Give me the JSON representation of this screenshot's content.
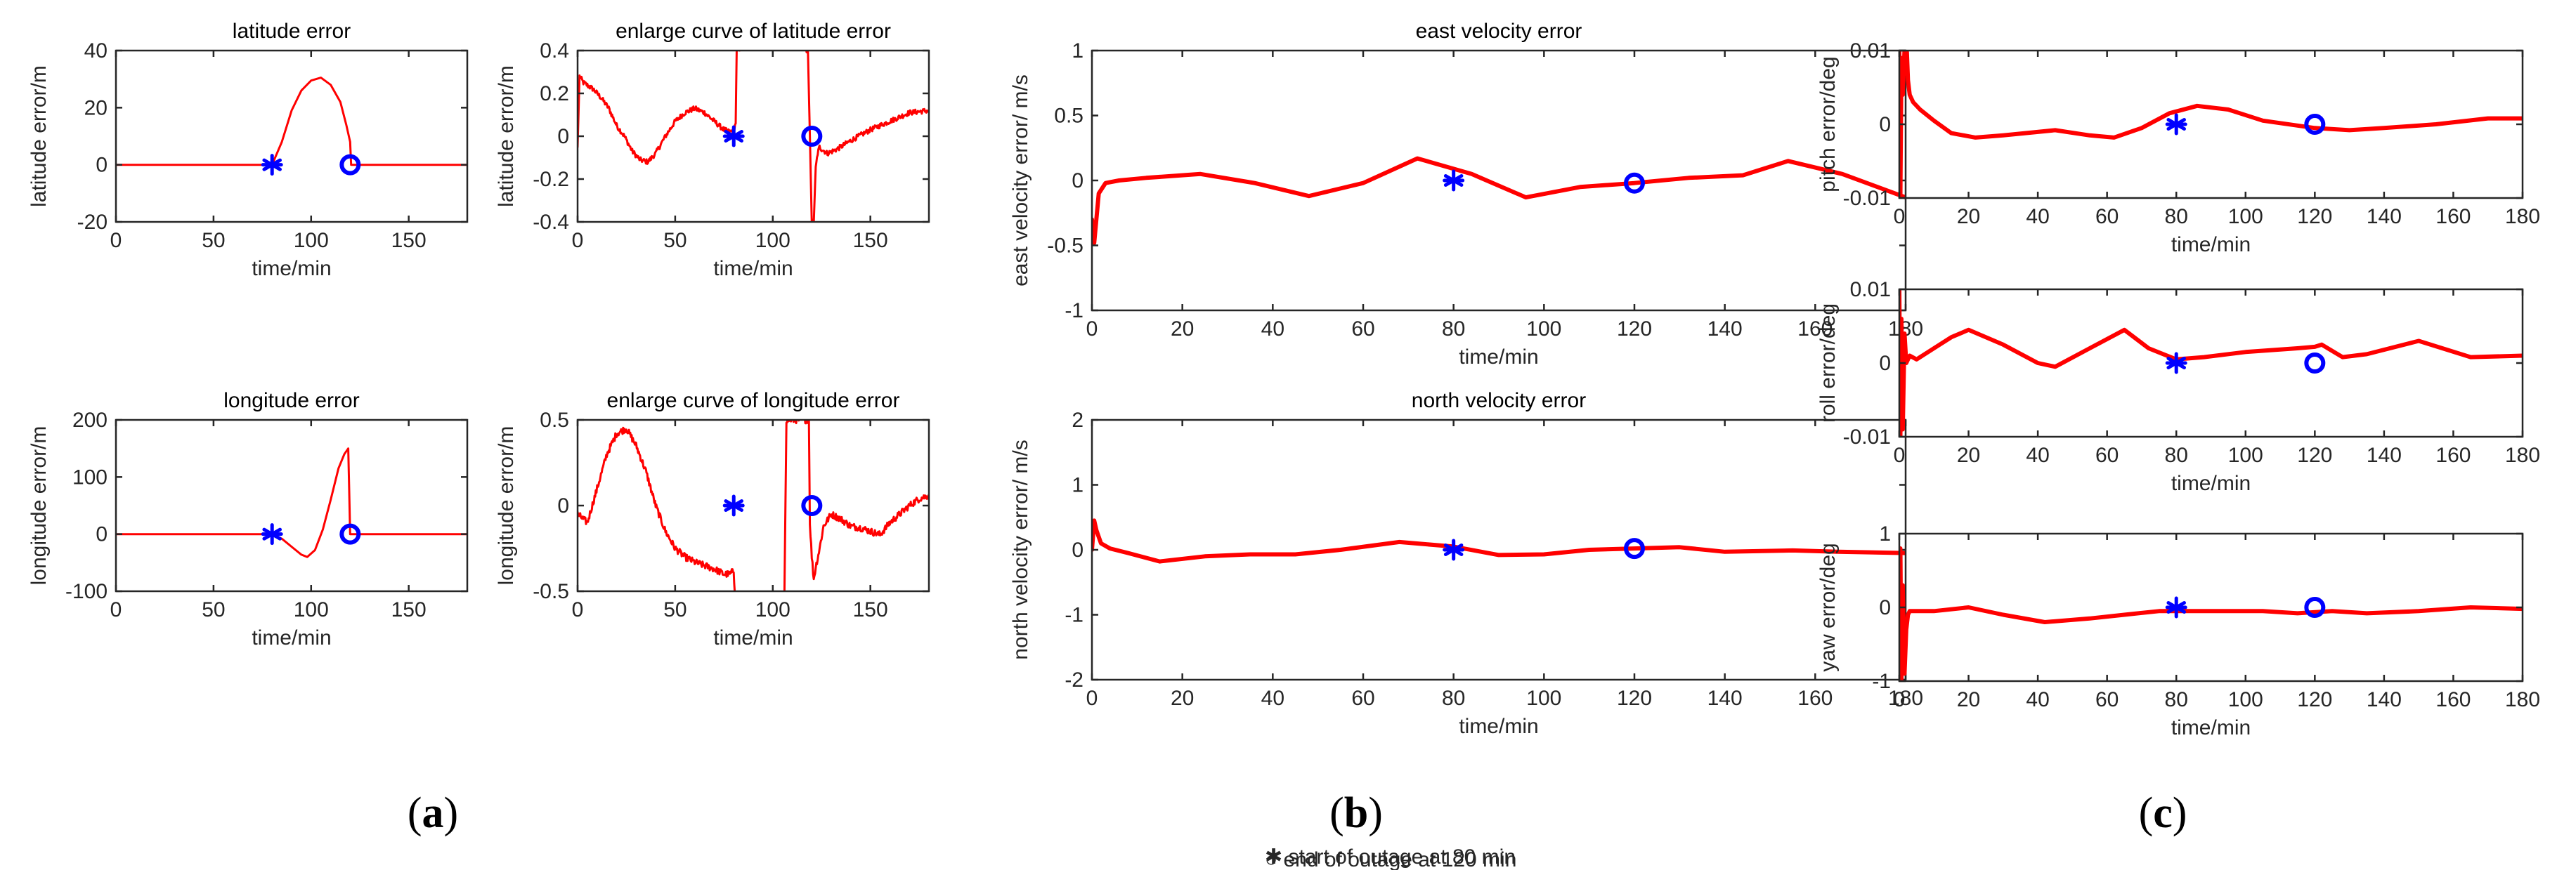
{
  "colors": {
    "series": "#ff0000",
    "marker": "#0000ff",
    "axis": "#262626"
  },
  "legend_markers": {
    "asterisk": "✱ start of outage at 80 min",
    "circle": "○ end of outage at 120 min"
  },
  "captions": [
    {
      "open": "(",
      "letter": "a",
      "close": ")"
    },
    {
      "open": "(",
      "letter": "b",
      "close": ")"
    },
    {
      "open": "(",
      "letter": "c",
      "close": ")"
    }
  ],
  "chart_data": [
    {
      "id": "lat",
      "type": "line",
      "title": "latitude error",
      "xlabel": "time/min",
      "ylabel": "latitude error/m",
      "xlim": [
        0,
        180
      ],
      "ylim": [
        -20,
        40
      ],
      "xticks": [
        0,
        50,
        100,
        150
      ],
      "yticks": [
        -20,
        0,
        20,
        40
      ],
      "series": [
        {
          "name": "latitude error",
          "x": [
            0,
            20,
            40,
            60,
            80,
            85,
            90,
            95,
            100,
            105,
            110,
            115,
            118,
            120,
            120.5,
            130,
            150,
            180
          ],
          "y": [
            0,
            0,
            0,
            0,
            0,
            8,
            19,
            26,
            29.5,
            30.5,
            28,
            22,
            14,
            8,
            0,
            0,
            0,
            0
          ]
        }
      ],
      "markers": [
        {
          "shape": "asterisk",
          "x": 80,
          "y": 0
        },
        {
          "shape": "circle",
          "x": 120,
          "y": 0
        }
      ]
    },
    {
      "id": "lat_zoom",
      "type": "line",
      "title": "enlarge curve of latitude error",
      "xlabel": "time/min",
      "ylabel": "latitude error/m",
      "xlim": [
        0,
        180
      ],
      "ylim": [
        -0.4,
        0.4
      ],
      "xticks": [
        0,
        50,
        100,
        150
      ],
      "yticks": [
        -0.4,
        -0.2,
        0,
        0.2,
        0.4
      ],
      "series": [
        {
          "name": "latitude error (zoom)",
          "noise": 0.015,
          "x": [
            0,
            1,
            3,
            8,
            12,
            16,
            20,
            24,
            28,
            32,
            36,
            40,
            45,
            50,
            55,
            60,
            65,
            70,
            75,
            78,
            80,
            81,
            81.5,
            83,
            85,
            90,
            100,
            110,
            116,
            117,
            118,
            119,
            120,
            121,
            122,
            123,
            124,
            125,
            128,
            133,
            140,
            150,
            160,
            170,
            180
          ],
          "y": [
            -0.05,
            0.28,
            0.25,
            0.22,
            0.18,
            0.13,
            0.05,
            0.0,
            -0.07,
            -0.11,
            -0.12,
            -0.08,
            0.0,
            0.07,
            0.11,
            0.13,
            0.11,
            0.07,
            0.03,
            0.02,
            0.03,
            0.06,
            0.4,
            0.4,
            null,
            null,
            null,
            null,
            null,
            0.4,
            0.4,
            0.0,
            -0.4,
            -0.4,
            -0.15,
            -0.08,
            -0.05,
            -0.06,
            -0.08,
            -0.06,
            -0.02,
            0.03,
            0.07,
            0.11,
            0.12
          ]
        }
      ],
      "markers": [
        {
          "shape": "asterisk",
          "x": 80,
          "y": 0
        },
        {
          "shape": "circle",
          "x": 120,
          "y": 0
        }
      ]
    },
    {
      "id": "lon",
      "type": "line",
      "title": "longitude error",
      "xlabel": "time/min",
      "ylabel": "longitude error/m",
      "xlim": [
        0,
        180
      ],
      "ylim": [
        -100,
        200
      ],
      "xticks": [
        0,
        50,
        100,
        150
      ],
      "yticks": [
        -100,
        0,
        100,
        200
      ],
      "series": [
        {
          "name": "longitude error",
          "x": [
            0,
            20,
            40,
            60,
            80,
            85,
            90,
            95,
            98,
            102,
            106,
            110,
            114,
            117,
            119,
            119.5,
            120,
            130,
            150,
            180
          ],
          "y": [
            0,
            0,
            0,
            0,
            0,
            -8,
            -22,
            -36,
            -40,
            -28,
            8,
            60,
            115,
            140,
            150,
            80,
            0,
            0,
            0,
            0
          ]
        }
      ],
      "markers": [
        {
          "shape": "asterisk",
          "x": 80,
          "y": 0
        },
        {
          "shape": "circle",
          "x": 120,
          "y": 0
        }
      ]
    },
    {
      "id": "lon_zoom",
      "type": "line",
      "title": "enlarge curve of longitude error",
      "xlabel": "time/min",
      "ylabel": "longitude error/m",
      "xlim": [
        0,
        180
      ],
      "ylim": [
        -0.5,
        0.5
      ],
      "xticks": [
        0,
        50,
        100,
        150
      ],
      "yticks": [
        -0.5,
        0,
        0.5
      ],
      "series": [
        {
          "name": "longitude error (zoom)",
          "noise": 0.02,
          "x": [
            0,
            5,
            10,
            15,
            20,
            25,
            30,
            35,
            40,
            45,
            50,
            55,
            60,
            65,
            70,
            75,
            78,
            80,
            80.5,
            81,
            90,
            100,
            105,
            106,
            107,
            110,
            118,
            118.5,
            119,
            120,
            121,
            122,
            124,
            126,
            130,
            135,
            140,
            145,
            150,
            155,
            160,
            165,
            170,
            175,
            180
          ],
          "y": [
            -0.05,
            -0.1,
            0.1,
            0.3,
            0.42,
            0.45,
            0.35,
            0.2,
            0.0,
            -0.15,
            -0.25,
            -0.3,
            -0.33,
            -0.35,
            -0.37,
            -0.4,
            -0.4,
            -0.38,
            -0.5,
            null,
            null,
            null,
            null,
            -0.5,
            0.5,
            0.5,
            0.5,
            0.5,
            -0.1,
            -0.3,
            -0.43,
            -0.36,
            -0.25,
            -0.12,
            -0.05,
            -0.08,
            -0.12,
            -0.13,
            -0.15,
            -0.17,
            -0.1,
            -0.05,
            0.0,
            0.04,
            0.06
          ]
        }
      ],
      "markers": [
        {
          "shape": "asterisk",
          "x": 80,
          "y": 0
        },
        {
          "shape": "circle",
          "x": 120,
          "y": 0
        }
      ]
    },
    {
      "id": "ve",
      "type": "line",
      "title": "east velocity error",
      "xlabel": "time/min",
      "ylabel": "east velocity error/ m/s",
      "xlim": [
        0,
        180
      ],
      "ylim": [
        -1,
        1
      ],
      "xticks": [
        0,
        20,
        40,
        60,
        80,
        100,
        120,
        140,
        160,
        180
      ],
      "yticks": [
        -1,
        -0.5,
        0,
        0.5,
        1
      ],
      "series": [
        {
          "name": "east velocity error",
          "x": [
            0,
            0.5,
            1.5,
            3,
            6,
            12,
            24,
            36,
            48,
            60,
            72,
            84,
            96,
            108,
            120,
            132,
            144,
            154,
            166,
            180
          ],
          "y": [
            -0.3,
            -0.48,
            -0.1,
            -0.02,
            0.0,
            0.02,
            0.05,
            -0.02,
            -0.12,
            -0.02,
            0.17,
            0.05,
            -0.13,
            -0.05,
            -0.02,
            0.02,
            0.04,
            0.15,
            0.05,
            -0.13
          ]
        }
      ],
      "markers": [
        {
          "shape": "asterisk",
          "x": 80,
          "y": 0
        },
        {
          "shape": "circle",
          "x": 120,
          "y": -0.02
        }
      ]
    },
    {
      "id": "vn",
      "type": "line",
      "title": "north velocity error",
      "xlabel": "time/min",
      "ylabel": "north velocity error/ m/s",
      "xlim": [
        0,
        180
      ],
      "ylim": [
        -2,
        2
      ],
      "xticks": [
        0,
        20,
        40,
        60,
        80,
        100,
        120,
        140,
        160,
        180
      ],
      "yticks": [
        -2,
        -1,
        0,
        1,
        2
      ],
      "series": [
        {
          "name": "north velocity error",
          "x": [
            0,
            0.5,
            1,
            2,
            4,
            8,
            15,
            25,
            35,
            45,
            55,
            68,
            80,
            90,
            100,
            110,
            120,
            130,
            140,
            155,
            165,
            180
          ],
          "y": [
            0.0,
            0.45,
            0.3,
            0.1,
            0.02,
            -0.05,
            -0.18,
            -0.1,
            -0.07,
            -0.07,
            0.0,
            0.12,
            0.05,
            -0.08,
            -0.07,
            0.0,
            0.02,
            0.04,
            -0.03,
            -0.01,
            -0.03,
            -0.05
          ]
        }
      ],
      "markers": [
        {
          "shape": "asterisk",
          "x": 80,
          "y": 0
        },
        {
          "shape": "circle",
          "x": 120,
          "y": 0.02
        }
      ]
    },
    {
      "id": "pitch",
      "type": "line",
      "title": "",
      "xlabel": "time/min",
      "ylabel": "pitch error/deg",
      "xlim": [
        0,
        180
      ],
      "ylim": [
        -0.01,
        0.01
      ],
      "xticks": [
        0,
        20,
        40,
        60,
        80,
        100,
        120,
        140,
        160,
        180
      ],
      "yticks": [
        -0.01,
        0,
        0.01
      ],
      "series": [
        {
          "name": "pitch error",
          "x": [
            0,
            0.3,
            0.6,
            1,
            1.5,
            2,
            2.5,
            3,
            4,
            6,
            10,
            15,
            22,
            30,
            45,
            55,
            62,
            70,
            78,
            86,
            95,
            105,
            120,
            130,
            140,
            155,
            170,
            180
          ],
          "y": [
            0.01,
            -0.01,
            0.009,
            0.004,
            0.01,
            0.012,
            0.006,
            0.004,
            0.003,
            0.002,
            0.0005,
            -0.0012,
            -0.0018,
            -0.0015,
            -0.0008,
            -0.0015,
            -0.0018,
            -0.0005,
            0.0015,
            0.0025,
            0.002,
            0.0005,
            -0.0005,
            -0.0008,
            -0.0005,
            0.0,
            0.0008,
            0.0008
          ]
        }
      ],
      "markers": [
        {
          "shape": "asterisk",
          "x": 80,
          "y": 0
        },
        {
          "shape": "circle",
          "x": 120,
          "y": 0
        }
      ]
    },
    {
      "id": "roll",
      "type": "line",
      "title": "",
      "xlabel": "time/min",
      "ylabel": "roll error/deg",
      "xlim": [
        0,
        180
      ],
      "ylim": [
        -0.01,
        0.01
      ],
      "xticks": [
        0,
        20,
        40,
        60,
        80,
        100,
        120,
        140,
        160,
        180
      ],
      "yticks": [
        -0.01,
        0,
        0.01
      ],
      "series": [
        {
          "name": "roll error",
          "x": [
            0,
            0.3,
            0.6,
            1,
            1.5,
            2,
            3,
            5,
            10,
            15,
            20,
            30,
            40,
            45,
            55,
            65,
            72,
            80,
            88,
            100,
            115,
            120,
            122,
            128,
            135,
            150,
            165,
            180
          ],
          "y": [
            0.01,
            -0.01,
            0.006,
            -0.009,
            0.004,
            0.0,
            0.001,
            0.0005,
            0.002,
            0.0035,
            0.0045,
            0.0025,
            0.0,
            -0.0005,
            0.002,
            0.0045,
            0.002,
            0.0005,
            0.0008,
            0.0015,
            0.002,
            0.0022,
            0.0025,
            0.0008,
            0.0012,
            0.003,
            0.0008,
            0.001
          ]
        }
      ],
      "markers": [
        {
          "shape": "asterisk",
          "x": 80,
          "y": 0
        },
        {
          "shape": "circle",
          "x": 120,
          "y": 0
        }
      ]
    },
    {
      "id": "yaw",
      "type": "line",
      "title": "",
      "xlabel": "time/min",
      "ylabel": "yaw error/deg",
      "xlim": [
        0,
        180
      ],
      "ylim": [
        -1,
        1
      ],
      "xticks": [
        0,
        20,
        40,
        60,
        80,
        100,
        120,
        140,
        160,
        180
      ],
      "yticks": [
        -1,
        0,
        1
      ],
      "series": [
        {
          "name": "yaw error",
          "x": [
            0,
            0.3,
            0.6,
            1,
            1.5,
            2,
            2.5,
            3,
            4,
            6,
            10,
            20,
            30,
            42,
            55,
            65,
            75,
            85,
            95,
            105,
            115,
            125,
            135,
            150,
            165,
            180
          ],
          "y": [
            0.0,
            0.8,
            -1.0,
            0.3,
            -0.9,
            -0.3,
            -0.1,
            -0.05,
            -0.05,
            -0.05,
            -0.05,
            0.0,
            -0.1,
            -0.2,
            -0.15,
            -0.1,
            -0.05,
            -0.05,
            -0.05,
            -0.05,
            -0.08,
            -0.05,
            -0.08,
            -0.05,
            0.0,
            -0.02
          ]
        }
      ],
      "markers": [
        {
          "shape": "asterisk",
          "x": 80,
          "y": 0
        },
        {
          "shape": "circle",
          "x": 120,
          "y": 0
        }
      ]
    }
  ]
}
